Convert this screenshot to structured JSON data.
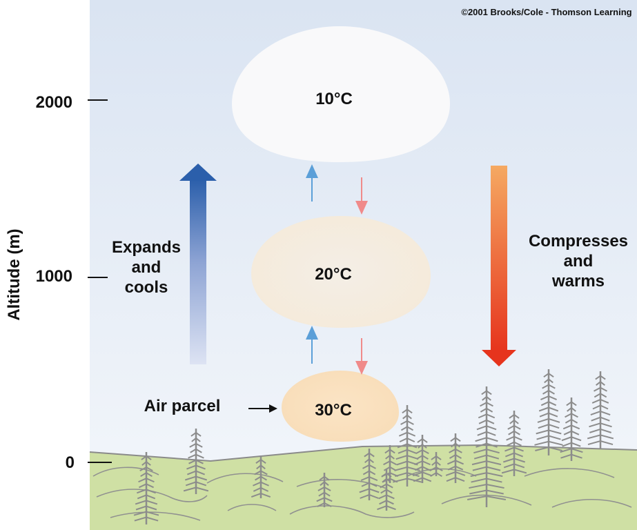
{
  "copyright": "©2001 Brooks/Cole - Thomson Learning",
  "y_axis": {
    "label": "Altitude (m)",
    "ticks": [
      "2000",
      "1000",
      "0"
    ]
  },
  "parcels": [
    {
      "temp": "10°C"
    },
    {
      "temp": "20°C"
    },
    {
      "temp": "30°C"
    }
  ],
  "rising": {
    "line1": "Expands",
    "line2": "and",
    "line3": "cools"
  },
  "sinking": {
    "line1": "Compresses",
    "line2": "and",
    "line3": "warms"
  },
  "parcel_label": "Air parcel",
  "colors": {
    "sky_top": "#dce6f3",
    "sky_bottom": "#f3f7fb",
    "ground": "#cfe0a4",
    "rising_arrow": "#2f64ad",
    "sinking_arrow_top": "#f4a762",
    "sinking_arrow_bottom": "#e63a1f",
    "small_up_arrow": "#5b9fd8",
    "small_down_arrow": "#f08a8a",
    "trees": "#8c8c8c"
  }
}
